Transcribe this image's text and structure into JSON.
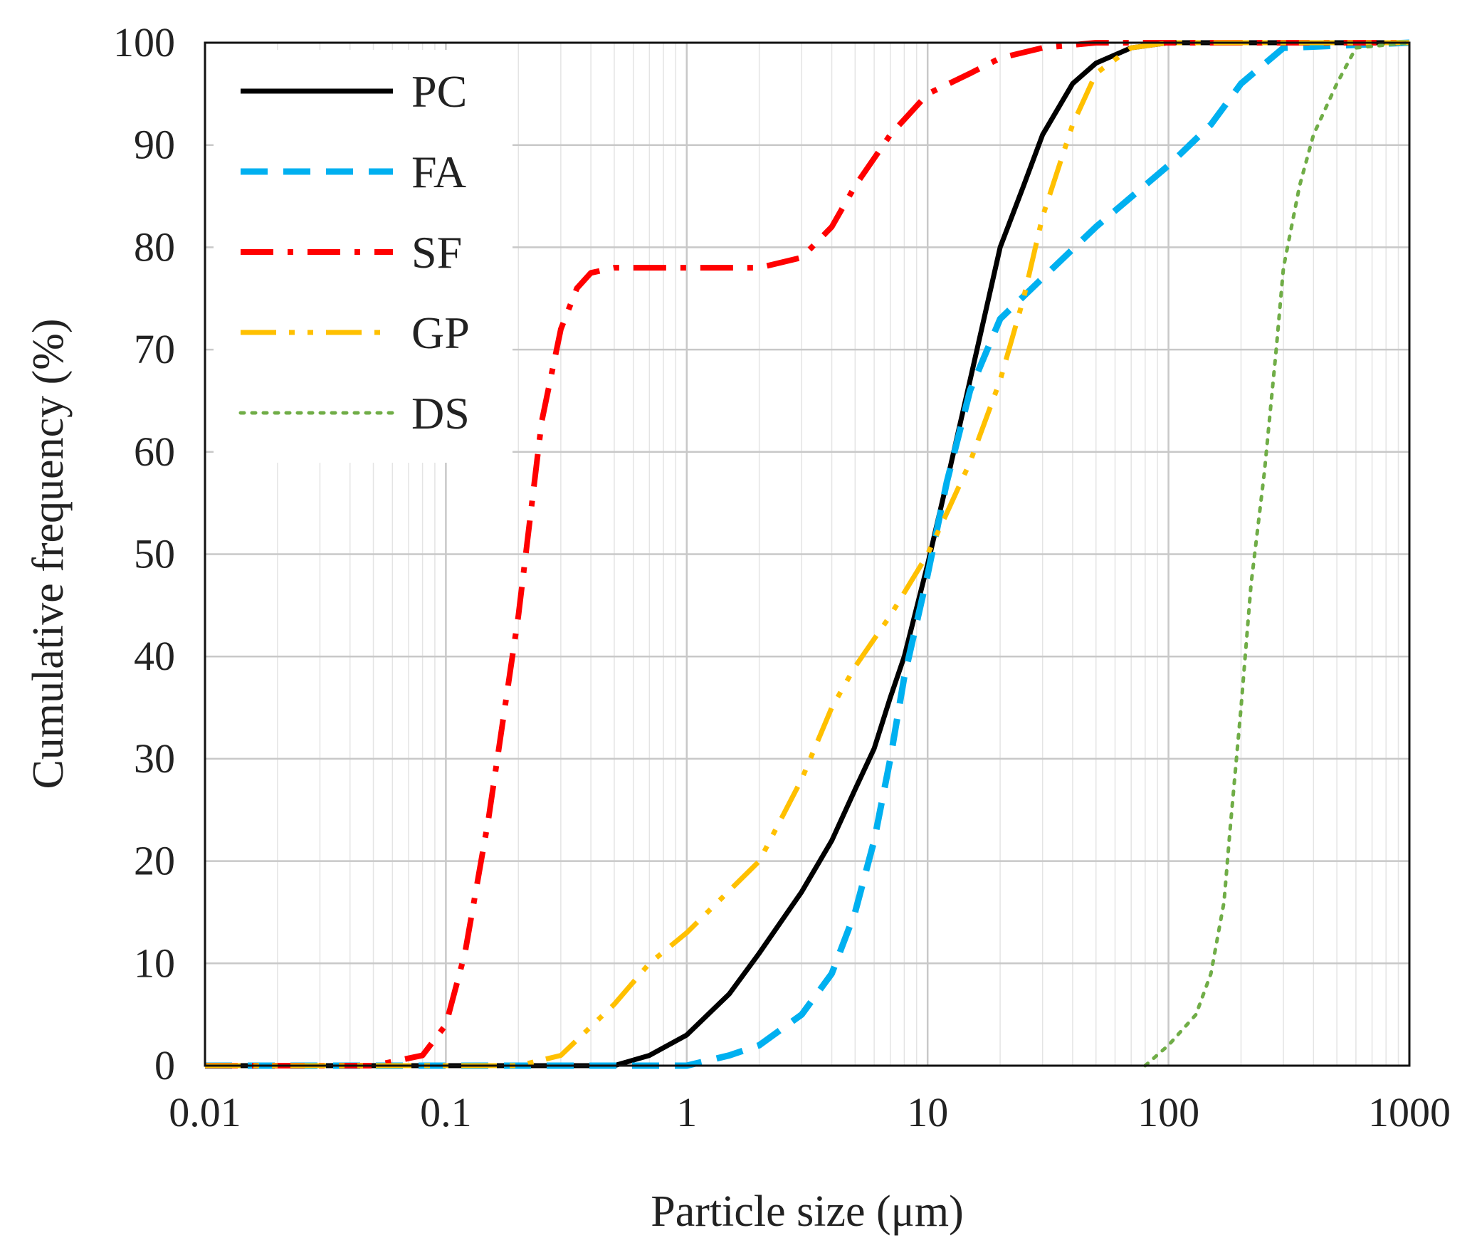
{
  "chart_data": {
    "type": "line",
    "title": "",
    "xlabel": "Particle size (μm)",
    "ylabel": "Cumulative frequency (%)",
    "xscale": "log",
    "xlim": [
      0.01,
      1000
    ],
    "ylim": [
      0,
      100
    ],
    "grid": true,
    "legend_position": "top-left",
    "x_tick_labels": [
      "0.01",
      "0.1",
      "1",
      "10",
      "100",
      "1000"
    ],
    "y_tick_labels": [
      "0",
      "10",
      "20",
      "30",
      "40",
      "50",
      "60",
      "70",
      "80",
      "90",
      "100"
    ],
    "series": [
      {
        "name": "PC",
        "color": "#000000",
        "style": "solid",
        "points": [
          [
            0.01,
            0
          ],
          [
            0.5,
            0
          ],
          [
            0.7,
            1
          ],
          [
            1,
            3
          ],
          [
            1.5,
            7
          ],
          [
            2,
            11
          ],
          [
            3,
            17
          ],
          [
            4,
            22
          ],
          [
            5,
            27
          ],
          [
            6,
            31
          ],
          [
            7,
            36
          ],
          [
            8,
            40
          ],
          [
            10,
            49
          ],
          [
            12,
            57
          ],
          [
            15,
            67
          ],
          [
            20,
            80
          ],
          [
            25,
            86
          ],
          [
            30,
            91
          ],
          [
            40,
            96
          ],
          [
            50,
            98
          ],
          [
            70,
            99.5
          ],
          [
            100,
            100
          ],
          [
            1000,
            100
          ]
        ]
      },
      {
        "name": "FA",
        "color": "#00B0F0",
        "style": "dashed",
        "points": [
          [
            0.01,
            0
          ],
          [
            1,
            0
          ],
          [
            1.5,
            1
          ],
          [
            2,
            2
          ],
          [
            3,
            5
          ],
          [
            4,
            9
          ],
          [
            5,
            15
          ],
          [
            6,
            22
          ],
          [
            7,
            30
          ],
          [
            8,
            38
          ],
          [
            10,
            48
          ],
          [
            12,
            57
          ],
          [
            15,
            66
          ],
          [
            20,
            73
          ],
          [
            30,
            77
          ],
          [
            50,
            82
          ],
          [
            100,
            88
          ],
          [
            150,
            92
          ],
          [
            200,
            96
          ],
          [
            300,
            99.5
          ],
          [
            1000,
            100
          ]
        ]
      },
      {
        "name": "SF",
        "color": "#FF0000",
        "style": "dashdot",
        "points": [
          [
            0.01,
            0
          ],
          [
            0.05,
            0
          ],
          [
            0.08,
            1
          ],
          [
            0.1,
            4
          ],
          [
            0.12,
            11
          ],
          [
            0.15,
            24
          ],
          [
            0.2,
            44
          ],
          [
            0.25,
            63
          ],
          [
            0.3,
            72
          ],
          [
            0.35,
            76
          ],
          [
            0.4,
            77.5
          ],
          [
            0.5,
            78
          ],
          [
            1,
            78
          ],
          [
            2,
            78
          ],
          [
            3,
            79
          ],
          [
            4,
            82
          ],
          [
            5,
            86
          ],
          [
            7,
            91
          ],
          [
            10,
            95
          ],
          [
            15,
            97
          ],
          [
            20,
            98.5
          ],
          [
            30,
            99.5
          ],
          [
            50,
            100
          ],
          [
            1000,
            100
          ]
        ]
      },
      {
        "name": "GP",
        "color": "#FFC000",
        "style": "dashdotdot",
        "points": [
          [
            0.01,
            0
          ],
          [
            0.1,
            0
          ],
          [
            0.2,
            0
          ],
          [
            0.3,
            1
          ],
          [
            0.5,
            6
          ],
          [
            0.7,
            10
          ],
          [
            1,
            13
          ],
          [
            2,
            20
          ],
          [
            3,
            28
          ],
          [
            4,
            35
          ],
          [
            5,
            39
          ],
          [
            7,
            44
          ],
          [
            10,
            50
          ],
          [
            12,
            54
          ],
          [
            15,
            59
          ],
          [
            20,
            67
          ],
          [
            25,
            75
          ],
          [
            30,
            83
          ],
          [
            40,
            92
          ],
          [
            50,
            97
          ],
          [
            70,
            99.5
          ],
          [
            100,
            100
          ],
          [
            1000,
            100
          ]
        ]
      },
      {
        "name": "DS",
        "color": "#70AD47",
        "style": "dotted",
        "points": [
          [
            80,
            0
          ],
          [
            100,
            2
          ],
          [
            130,
            5
          ],
          [
            150,
            9
          ],
          [
            170,
            16
          ],
          [
            180,
            23
          ],
          [
            200,
            35
          ],
          [
            220,
            47
          ],
          [
            250,
            58
          ],
          [
            280,
            70
          ],
          [
            300,
            78
          ],
          [
            350,
            86
          ],
          [
            400,
            91
          ],
          [
            500,
            96
          ],
          [
            600,
            99.5
          ],
          [
            1000,
            100
          ]
        ]
      }
    ]
  }
}
